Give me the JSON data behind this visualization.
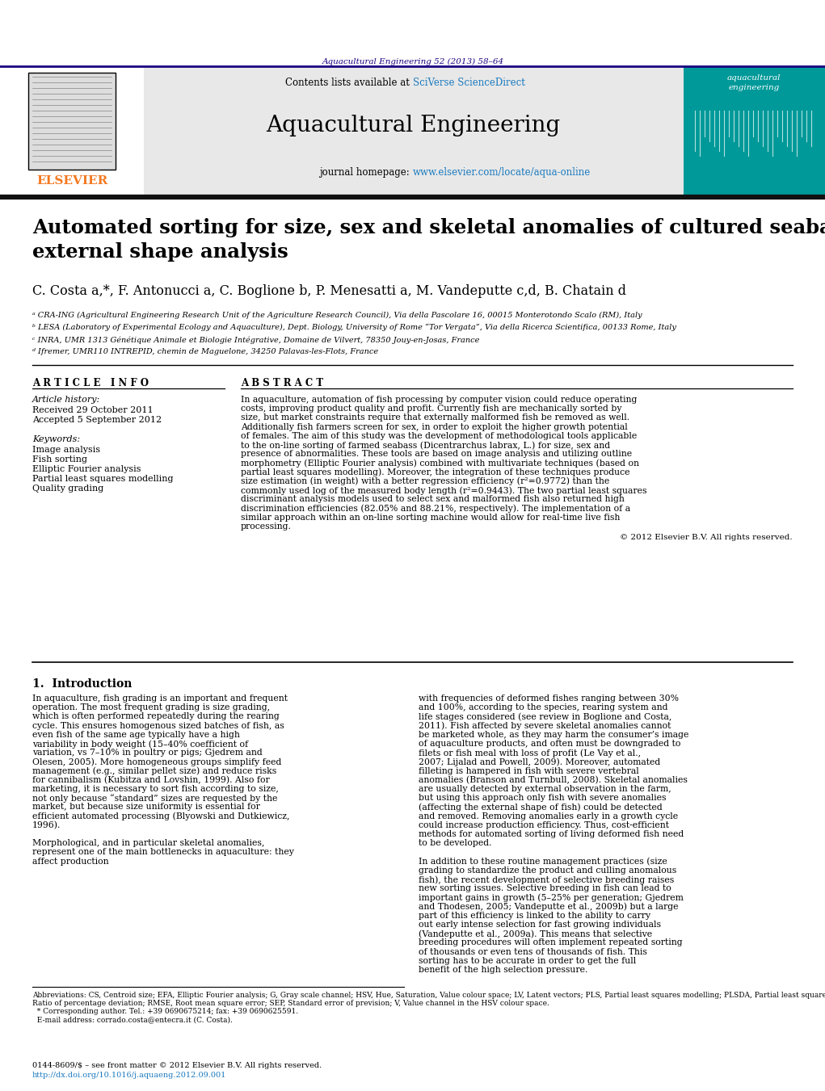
{
  "journal_ref": "Aquacultural Engineering 52 (2013) 58–64",
  "journal_ref_color": "#1a0080",
  "contents_line": "Contents lists available at SciVerse ScienceDirect",
  "sciverse_color": "#1a7abf",
  "journal_name": "Aquacultural Engineering",
  "journal_homepage_prefix": "journal homepage: ",
  "journal_homepage_url": "www.elsevier.com/locate/aqua-online",
  "homepage_url_color": "#1a7abf",
  "elsevier_color": "#f47920",
  "paper_title_line1": "Automated sorting for size, sex and skeletal anomalies of cultured seabass using",
  "paper_title_line2": "external shape analysis",
  "authors": "C. Costa a,*, F. Antonucci a, C. Boglione b, P. Menesatti a, M. Vandeputte c,d, B. Chatain d",
  "affil_a": "ᵃ CRA-ING (Agricultural Engineering Research Unit of the Agriculture Research Council), Via della Pascolare 16, 00015 Monterotondo Scalo (RM), Italy",
  "affil_b": "ᵇ LESA (Laboratory of Experimental Ecology and Aquaculture), Dept. Biology, University of Rome “Tor Vergata”, Via della Ricerca Scientifica, 00133 Rome, Italy",
  "affil_c": "ᶜ INRA, UMR 1313 Génétique Animale et Biologie Intégrative, Domaine de Vilvert, 78350 Jouy-en-Josas, France",
  "affil_d": "ᵈ Ifremer, UMR110 INTREPID, chemin de Maguelone, 34250 Palavas-les-Flots, France",
  "article_info_header": "A R T I C L E   I N F O",
  "abstract_header": "A B S T R A C T",
  "article_history_label": "Article history:",
  "received": "Received 29 October 2011",
  "accepted": "Accepted 5 September 2012",
  "keywords_label": "Keywords:",
  "keywords": [
    "Image analysis",
    "Fish sorting",
    "Elliptic Fourier analysis",
    "Partial least squares modelling",
    "Quality grading"
  ],
  "abstract_text": "In aquaculture, automation of fish processing by computer vision could reduce operating costs, improving product quality and profit. Currently fish are mechanically sorted by size, but market constraints require that externally malformed fish be removed as well. Additionally fish farmers screen for sex, in order to exploit the higher growth potential of females. The aim of this study was the development of methodological tools applicable to the on-line sorting of farmed seabass (Dicentrarchus labrax, L.) for size, sex and presence of abnormalities. These tools are based on image analysis and utilizing outline morphometry (Elliptic Fourier analysis) combined with multivariate techniques (based on partial least squares modelling). Moreover, the integration of these techniques produce size estimation (in weight) with a better regression efficiency (r²=0.9772) than the commonly used log of the measured body length (r²=0.9443). The two partial least squares discriminant analysis models used to select sex and malformed fish also returned high discrimination efficiencies (82.05% and 88.21%, respectively). The implementation of a similar approach within an on-line sorting machine would allow for real-time live fish processing.",
  "copyright": "© 2012 Elsevier B.V. All rights reserved.",
  "section1_title": "1.  Introduction",
  "intro_col1": "In aquaculture, fish grading is an important and frequent operation. The most frequent grading is size grading, which is often performed repeatedly during the rearing cycle. This ensures homogenous sized batches of fish, as even fish of the same age typically have a high variability in body weight (15–40% coefficient of variation, vs 7–10% in poultry or pigs; Gjedrem and Olesen, 2005). More homogeneous groups simplify feed management (e.g., similar pellet size) and reduce risks for cannibalism (Kubitza and Lovshin, 1999). Also for marketing, it is necessary to sort fish according to size, not only because “standard” sizes are requested by the market, but because size uniformity is essential for efficient automated processing (Blyowski and Dutkiewicz, 1996).\n\n    Morphological, and in particular skeletal anomalies, represent one of the main bottlenecks in aquaculture: they affect production",
  "intro_col2": "with frequencies of deformed fishes ranging between 30% and 100%, according to the species, rearing system and life stages considered (see review in Boglione and Costa, 2011). Fish affected by severe skeletal anomalies cannot be marketed whole, as they may harm the consumer’s image of aquaculture products, and often must be downgraded to filets or fish meal with loss of profit (Le Vay et al., 2007; Lijalad and Powell, 2009). Moreover, automated filleting is hampered in fish with severe vertebral anomalies (Branson and Turnbull, 2008). Skeletal anomalies are usually detected by external observation in the farm, but using this approach only fish with severe anomalies (affecting the external shape of fish) could be detected and removed. Removing anomalies early in a growth cycle could increase production efficiency. Thus, cost-efficient methods for automated sorting of living deformed fish need to be developed.\n\n    In addition to these routine management practices (size grading to standardize the product and culling anomalous fish), the recent development of selective breeding raises new sorting issues. Selective breeding in fish can lead to important gains in growth (5–25% per generation; Gjedrem and Thodesen, 2005; Vandeputte et al., 2009b) but a large part of this efficiency is linked to the ability to carry out early intense selection for fast growing individuals (Vandeputte et al., 2009a). This means that selective breeding procedures will often implement repeated sorting of thousands or even tens of thousands of fish. This sorting has to be accurate in order to get the full benefit of the high selection pressure.",
  "footnote1": "Abbreviations: CS, Centroid size; EFA, Elliptic Fourier analysis; G, Gray scale channel; HSV, Hue, Saturation, Value colour space; LV, Latent vectors; PLS, Partial least squares modelling; PLSDA, Partial least squares discriminant analysis; RPD,",
  "footnote2": "Ratio of percentage deviation; RMSE, Root mean square error; SEP, Standard error of prevision; V, Value channel in the HSV colour space.",
  "footnote3": "  * Corresponding author. Tel.: +39 0690675214; fax: +39 0690625591.",
  "footnote4": "  E-mail address: corrado.costa@entecra.it (C. Costa).",
  "issn_line": "0144-8609/$ – see front matter © 2012 Elsevier B.V. All rights reserved.",
  "doi_line": "http://dx.doi.org/10.1016/j.aquaeng.2012.09.001",
  "doi_color": "#1a7abf",
  "header_bg": "#e8e8e8",
  "teal_cover_bg": "#009999",
  "body_text_color": "#000000"
}
